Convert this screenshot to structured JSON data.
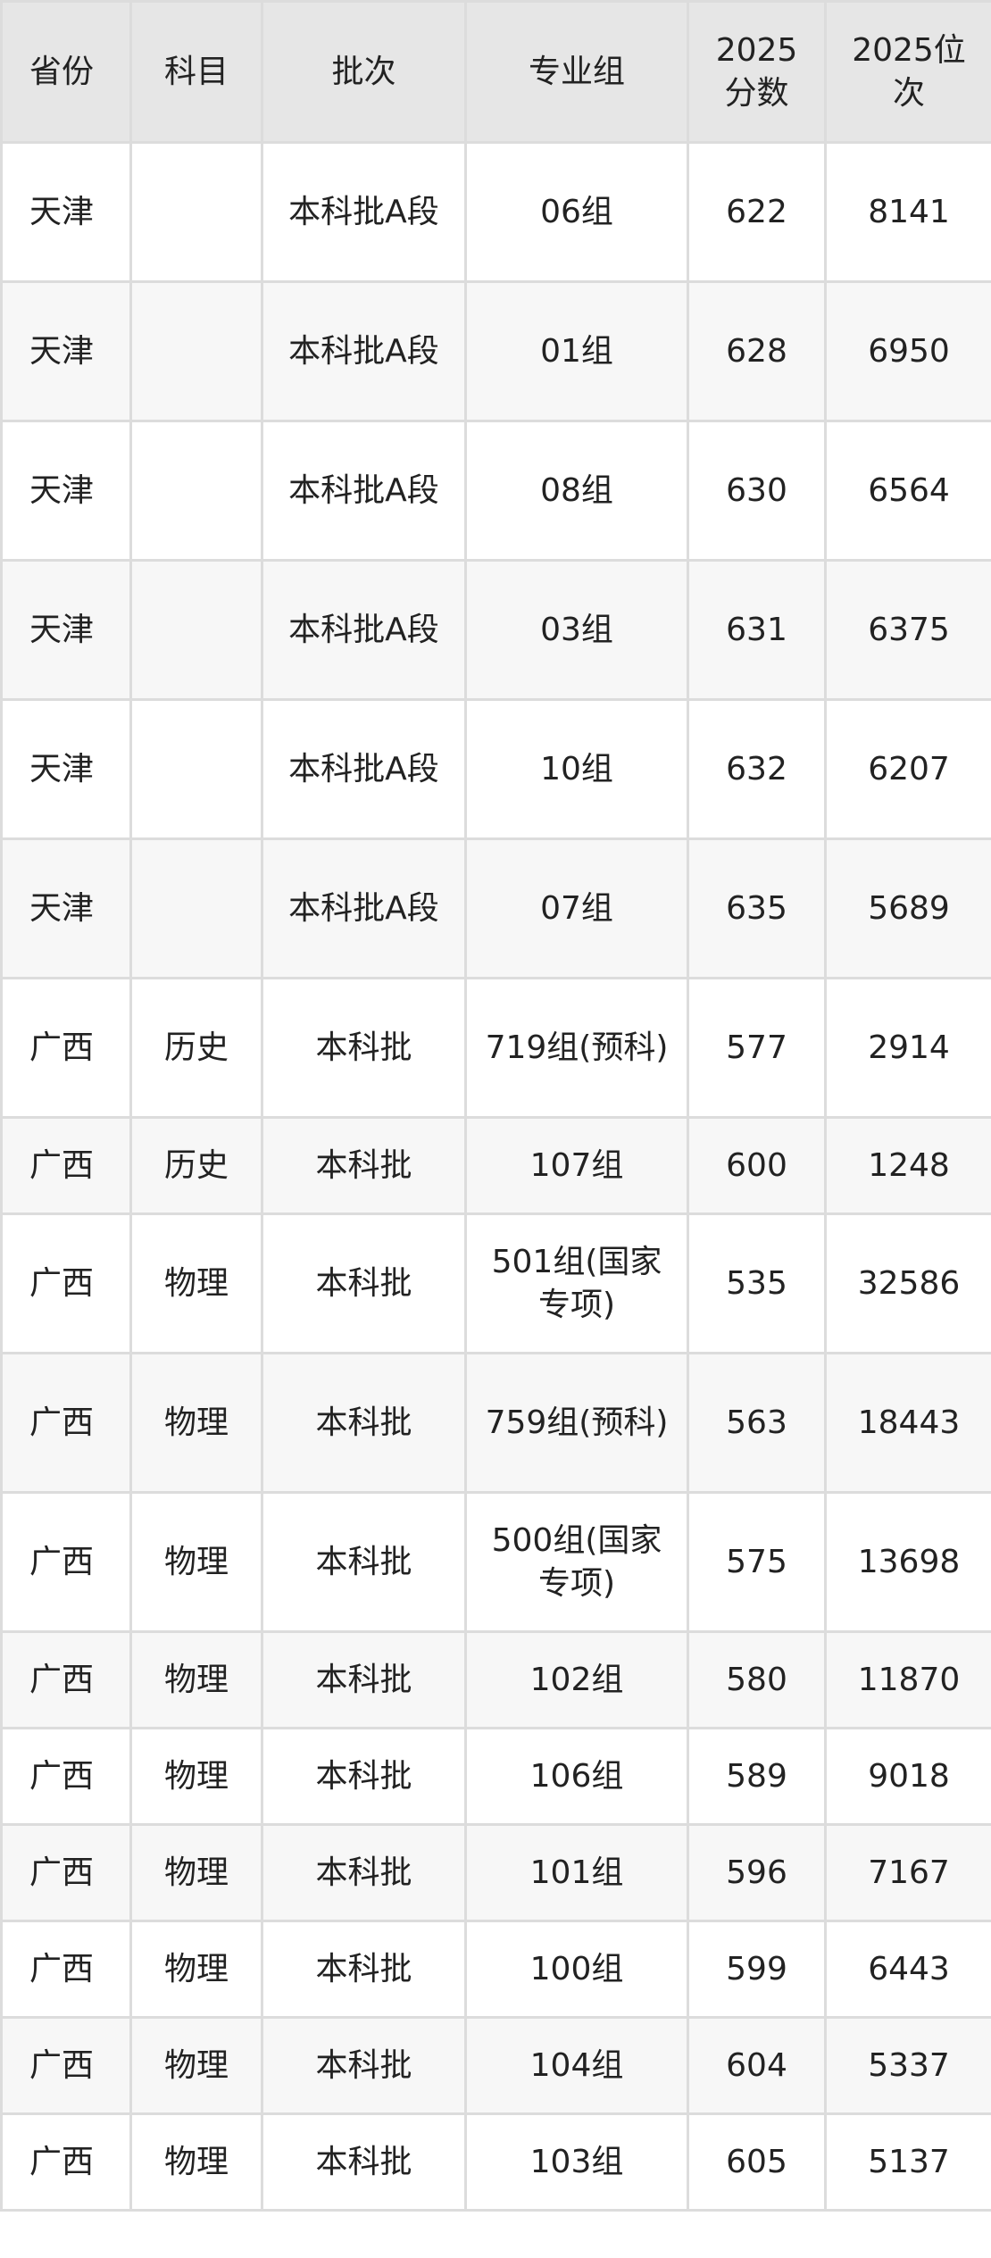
{
  "colors": {
    "header_bg": "#e6e6e6",
    "alt_row_bg": "#f7f7f7",
    "border": "#dcdcdc",
    "text": "#222222"
  },
  "table": {
    "headers": [
      "省份",
      "科目",
      "批次",
      "专业组",
      "2025分数",
      "2025位次"
    ],
    "rows": [
      [
        "天津",
        "",
        "本科批A段",
        "06组",
        "622",
        "8141"
      ],
      [
        "天津",
        "",
        "本科批A段",
        "01组",
        "628",
        "6950"
      ],
      [
        "天津",
        "",
        "本科批A段",
        "08组",
        "630",
        "6564"
      ],
      [
        "天津",
        "",
        "本科批A段",
        "03组",
        "631",
        "6375"
      ],
      [
        "天津",
        "",
        "本科批A段",
        "10组",
        "632",
        "6207"
      ],
      [
        "天津",
        "",
        "本科批A段",
        "07组",
        "635",
        "5689"
      ],
      [
        "广西",
        "历史",
        "本科批",
        "719组(预科)",
        "577",
        "2914"
      ],
      [
        "广西",
        "历史",
        "本科批",
        "107组",
        "600",
        "1248"
      ],
      [
        "广西",
        "物理",
        "本科批",
        "501组(国家专项)",
        "535",
        "32586"
      ],
      [
        "广西",
        "物理",
        "本科批",
        "759组(预科)",
        "563",
        "18443"
      ],
      [
        "广西",
        "物理",
        "本科批",
        "500组(国家专项)",
        "575",
        "13698"
      ],
      [
        "广西",
        "物理",
        "本科批",
        "102组",
        "580",
        "11870"
      ],
      [
        "广西",
        "物理",
        "本科批",
        "106组",
        "589",
        "9018"
      ],
      [
        "广西",
        "物理",
        "本科批",
        "101组",
        "596",
        "7167"
      ],
      [
        "广西",
        "物理",
        "本科批",
        "100组",
        "599",
        "6443"
      ],
      [
        "广西",
        "物理",
        "本科批",
        "104组",
        "604",
        "5337"
      ],
      [
        "广西",
        "物理",
        "本科批",
        "103组",
        "605",
        "5137"
      ]
    ]
  }
}
